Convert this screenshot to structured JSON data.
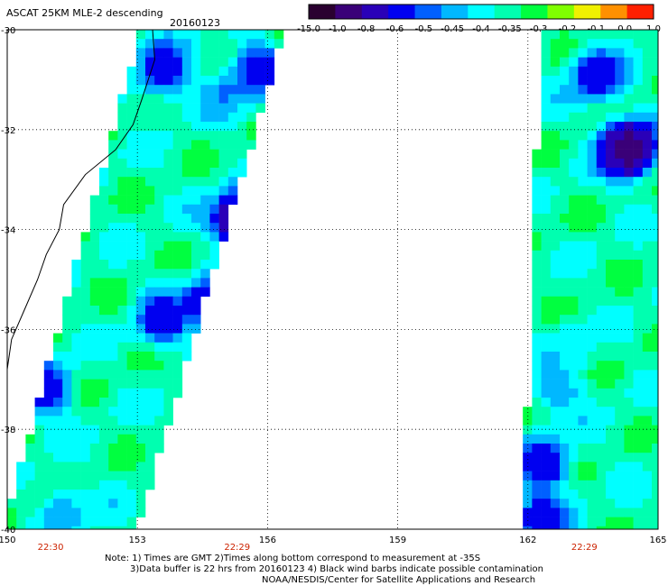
{
  "title": "ASCAT 25KM MLE-2 descending",
  "date": "20160123",
  "colorbar": {
    "tick_labels": [
      "-15.0",
      "-1.0",
      "-0.8",
      "-0.6",
      "-0.5",
      "-0.45",
      "-0.4",
      "-0.35",
      "-0.3",
      "-0.2",
      "-0.1",
      "0.0",
      "1.0"
    ],
    "colors": [
      "#2a0030",
      "#3a0078",
      "#2a00b8",
      "#0000f0",
      "#0060ff",
      "#00b8ff",
      "#00ffff",
      "#00ffb0",
      "#00ff40",
      "#80ff00",
      "#f0f000",
      "#ff9000",
      "#ff2000"
    ]
  },
  "notes": [
    "Note: 1) Times are GMT 2)Times along bottom correspond to measurement at -35S",
    "3)Data buffer is 22 hrs from 20160123 4) Black wind barbs indicate possible contamination",
    "NOAA/NESDIS/Center for Satellite Applications and Research"
  ],
  "chart_data": {
    "type": "heatmap",
    "x_ticks": [
      "150",
      "153",
      "156",
      "159",
      "162",
      "165"
    ],
    "y_ticks": [
      "-30",
      "-32",
      "-34",
      "-36",
      "-38",
      "-40"
    ],
    "xlim": [
      150,
      165
    ],
    "ylim": [
      -40,
      -30
    ],
    "grid": true,
    "time_labels": [
      {
        "lon": 151,
        "text": "22:30"
      },
      {
        "lon": 155.3,
        "text": "22:29"
      },
      {
        "lon": 163.3,
        "text": "22:29"
      }
    ],
    "swaths": [
      {
        "name": "west",
        "west_edge_at_top": 153.2,
        "west_edge_at_bottom": 150,
        "east_edge_at_top": 156.3,
        "east_edge_at_bottom": 152.9
      },
      {
        "name": "east",
        "west_edge_at_top": 162.4,
        "west_edge_at_bottom": 162.0,
        "east_edge_at_top": 165,
        "east_edge_at_bottom": 165
      }
    ],
    "features": [
      {
        "lon": 155.3,
        "lat": -33.8,
        "value": -0.8
      },
      {
        "lon": 153.6,
        "lat": -35.8,
        "value": -0.6
      },
      {
        "lon": 154.6,
        "lat": -35.5,
        "value": -0.6
      },
      {
        "lon": 150.9,
        "lat": -37.2,
        "value": -0.6
      },
      {
        "lon": 151.3,
        "lat": -39.7,
        "value": -0.45
      },
      {
        "lon": 155.0,
        "lat": -31.3,
        "value": -0.45
      },
      {
        "lon": 155.8,
        "lat": -30.8,
        "value": -0.6
      },
      {
        "lon": 153.6,
        "lat": -30.8,
        "value": -0.6
      },
      {
        "lon": 164.3,
        "lat": -32.4,
        "value": -1.0
      },
      {
        "lon": 163.6,
        "lat": -30.9,
        "value": -0.6
      },
      {
        "lon": 162.4,
        "lat": -38.7,
        "value": -0.6
      },
      {
        "lon": 162.3,
        "lat": -39.8,
        "value": -0.6
      },
      {
        "lon": 162.7,
        "lat": -37.2,
        "value": -0.45
      },
      {
        "lon": 162.9,
        "lat": -36.4,
        "value": -0.4
      }
    ]
  }
}
